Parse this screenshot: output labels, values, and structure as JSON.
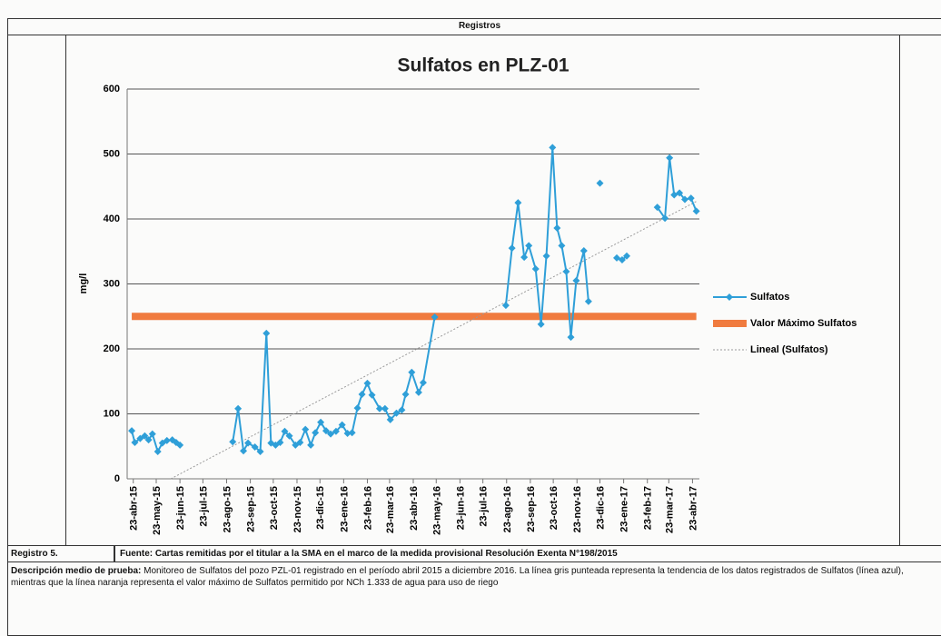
{
  "header": {
    "title": "Registros"
  },
  "chart_data": {
    "type": "line",
    "title": "Sulfatos en PLZ-01",
    "y_label": "mg/l",
    "xlim": [
      "2015-04-15",
      "2017-05-02"
    ],
    "xticks": [
      {
        "value": "2015-04-23",
        "label": "23-abr-15"
      },
      {
        "value": "2015-05-23",
        "label": "23-may-15"
      },
      {
        "value": "2015-06-23",
        "label": "23-jun-15"
      },
      {
        "value": "2015-07-23",
        "label": "23-jul-15"
      },
      {
        "value": "2015-08-23",
        "label": "23-ago-15"
      },
      {
        "value": "2015-09-23",
        "label": "23-sep-15"
      },
      {
        "value": "2015-10-23",
        "label": "23-oct-15"
      },
      {
        "value": "2015-11-23",
        "label": "23-nov-15"
      },
      {
        "value": "2015-12-23",
        "label": "23-dic-15"
      },
      {
        "value": "2016-01-23",
        "label": "23-ene-16"
      },
      {
        "value": "2016-02-23",
        "label": "23-feb-16"
      },
      {
        "value": "2016-03-23",
        "label": "23-mar-16"
      },
      {
        "value": "2016-04-23",
        "label": "23-abr-16"
      },
      {
        "value": "2016-05-23",
        "label": "23-may-16"
      },
      {
        "value": "2016-06-23",
        "label": "23-jun-16"
      },
      {
        "value": "2016-07-23",
        "label": "23-jul-16"
      },
      {
        "value": "2016-08-23",
        "label": "23-ago-16"
      },
      {
        "value": "2016-09-23",
        "label": "23-sep-16"
      },
      {
        "value": "2016-10-23",
        "label": "23-oct-16"
      },
      {
        "value": "2016-11-23",
        "label": "23-nov-16"
      },
      {
        "value": "2016-12-23",
        "label": "23-dic-16"
      },
      {
        "value": "2017-01-23",
        "label": "23-ene-17"
      },
      {
        "value": "2017-02-23",
        "label": "23-feb-17"
      },
      {
        "value": "2017-03-23",
        "label": "23-mar-17"
      },
      {
        "value": "2017-04-23",
        "label": "23-abr-17"
      }
    ],
    "ylim": [
      0,
      600
    ],
    "yticks": [
      0,
      100,
      200,
      300,
      400,
      500,
      600
    ],
    "grid": true,
    "series": [
      {
        "name": "Sulfatos",
        "color": "#2f9fd8",
        "marker": "diamond",
        "x": [
          "2015-04-21",
          "2015-04-25",
          "2015-05-02",
          "2015-05-08",
          "2015-05-13",
          "2015-05-18",
          "2015-05-25",
          "2015-05-31",
          "2015-06-06",
          "2015-06-13",
          "2015-06-18",
          "2015-06-23",
          "2015-07-20",
          "2015-08-31",
          "2015-09-07",
          "2015-09-14",
          "2015-09-20",
          "2015-09-29",
          "2015-10-06",
          "2015-10-14",
          "2015-10-20",
          "2015-10-26",
          "2015-11-01",
          "2015-11-07",
          "2015-11-13",
          "2015-11-21",
          "2015-11-27",
          "2015-12-04",
          "2015-12-11",
          "2015-12-17",
          "2015-12-24",
          "2015-12-31",
          "2016-01-06",
          "2016-01-13",
          "2016-01-21",
          "2016-01-28",
          "2016-02-03",
          "2016-02-10",
          "2016-02-16",
          "2016-02-23",
          "2016-02-29",
          "2016-03-10",
          "2016-03-17",
          "2016-03-24",
          "2016-04-01",
          "2016-04-08",
          "2016-04-13",
          "2016-04-21",
          "2016-04-30",
          "2016-05-06",
          "2016-05-21",
          "2016-07-15",
          "2016-08-22",
          "2016-08-30",
          "2016-09-07",
          "2016-09-15",
          "2016-09-21",
          "2016-09-30",
          "2016-10-07",
          "2016-10-14",
          "2016-10-22",
          "2016-10-28",
          "2016-11-03",
          "2016-11-09",
          "2016-11-15",
          "2016-11-22",
          "2016-12-02",
          "2016-12-08",
          "2016-12-14",
          "2016-12-23",
          "2017-01-05",
          "2017-01-14",
          "2017-01-21",
          "2017-01-27",
          "2017-02-10",
          "2017-03-08",
          "2017-03-18",
          "2017-03-24",
          "2017-03-30",
          "2017-04-06",
          "2017-04-13",
          "2017-04-21",
          "2017-04-28"
        ],
        "values": [
          74,
          56,
          62,
          66,
          60,
          69,
          42,
          55,
          59,
          60,
          56,
          52,
          null,
          57,
          108,
          43,
          55,
          49,
          42,
          224,
          55,
          52,
          56,
          73,
          66,
          52,
          56,
          76,
          52,
          71,
          87,
          74,
          69,
          73,
          83,
          70,
          71,
          109,
          130,
          147,
          129,
          108,
          108,
          91,
          101,
          106,
          130,
          164,
          133,
          148,
          249,
          null,
          267,
          355,
          425,
          341,
          359,
          323,
          238,
          343,
          510,
          386,
          359,
          319,
          218,
          305,
          351,
          273,
          null,
          455,
          null,
          340,
          337,
          343,
          null,
          418,
          401,
          494,
          437,
          440,
          430,
          432,
          412
        ]
      },
      {
        "name": "Valor Máximo Sulfatos",
        "color": "#f07b3f",
        "x": [
          "2015-04-21",
          "2017-04-28"
        ],
        "values": [
          250,
          250
        ]
      },
      {
        "name": "Lineal (Sulfatos)",
        "color": "#9a9a9a",
        "style": "dotted",
        "x": [
          "2015-06-11",
          "2017-04-28"
        ],
        "values": [
          0,
          427
        ]
      }
    ]
  },
  "footer": {
    "record": "Registro 5.",
    "source": "Fuente: Cartas remitidas por el titular a la SMA en el marco de la medida provisional Resolución Exenta N°198/2015",
    "description_label": "Descripción medio de prueba:",
    "description": "Monitoreo de Sulfatos del pozo PZL-01 registrado en el período abril 2015 a diciembre 2016. La línea gris punteada representa la tendencia de los datos registrados de Sulfatos (línea azul), mientras que la línea naranja representa el valor máximo de Sulfatos permitido por NCh 1.333 de agua para uso de riego"
  }
}
